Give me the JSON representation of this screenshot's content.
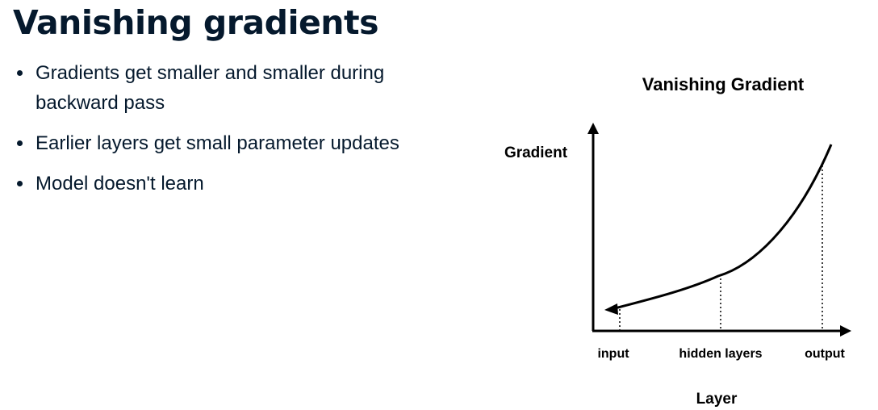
{
  "slide": {
    "title": "Vanishing gradients",
    "bullets": [
      "Gradients get smaller and smaller during backward pass",
      "Earlier layers get small parameter updates",
      "Model doesn't learn"
    ]
  },
  "diagram": {
    "title": "Vanishing Gradient",
    "y_axis_label": "Gradient",
    "x_axis_label": "Layer",
    "x_tick_labels": [
      "input",
      "hidden layers",
      "output"
    ],
    "curve_shape": "exponential",
    "arrow_direction": "toward-input"
  }
}
